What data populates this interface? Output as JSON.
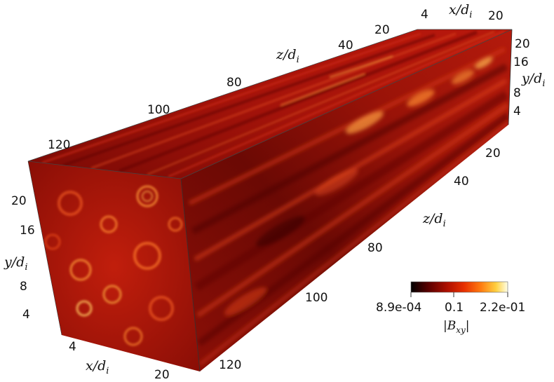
{
  "colorbar": {
    "min_label": "8.9e-04",
    "mid_label": "0.1",
    "max_label": "2.2e-01",
    "title_main": "|B",
    "title_sub": "xy",
    "title_end": "|",
    "colors": [
      "#000000",
      "#5a0000",
      "#b01000",
      "#e83000",
      "#ff7a10",
      "#ffd040",
      "#ffffe8"
    ]
  },
  "axes": {
    "front_x": {
      "label_main": "x/d",
      "label_sub": "i",
      "ticks": [
        "4",
        "20"
      ]
    },
    "front_y": {
      "label_main": "y/d",
      "label_sub": "i",
      "ticks": [
        "20",
        "16",
        "8",
        "4"
      ]
    },
    "left_z": {
      "label_main": "z/d",
      "label_sub": "i",
      "ticks": [
        "120",
        "100",
        "80",
        "40",
        "20"
      ]
    },
    "right_z": {
      "label_main": "z/d",
      "label_sub": "i",
      "ticks": [
        "20",
        "40",
        "80",
        "100",
        "120"
      ]
    },
    "back_x": {
      "label_main": "x/d",
      "label_sub": "i",
      "ticks": [
        "4",
        "20"
      ]
    },
    "back_y": {
      "label_main": "y/d",
      "label_sub": "i",
      "ticks": [
        "20",
        "16",
        "8",
        "4"
      ]
    }
  }
}
